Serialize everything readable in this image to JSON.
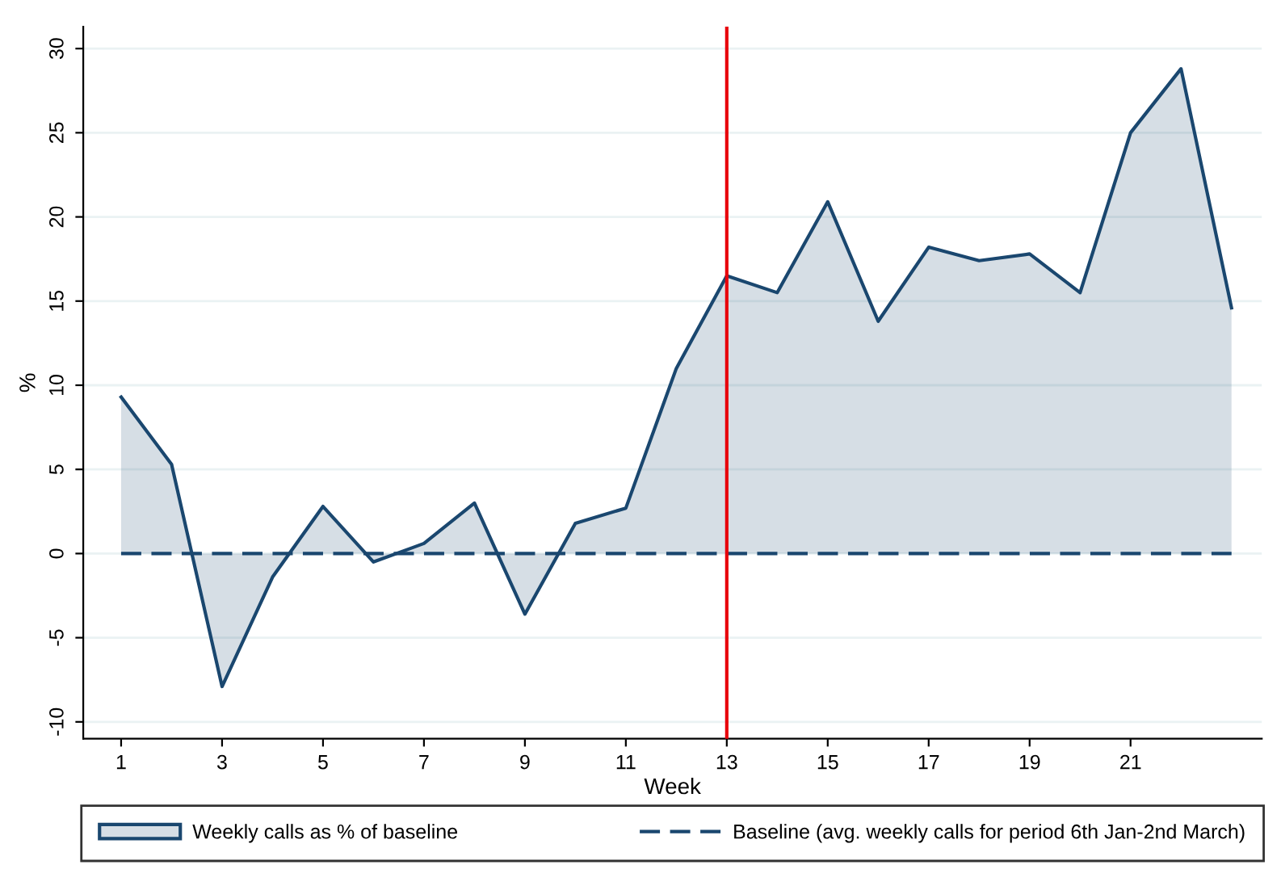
{
  "chart_data": {
    "type": "area",
    "xlabel": "Week",
    "ylabel": "%",
    "x": [
      1,
      2,
      3,
      4,
      5,
      6,
      7,
      8,
      9,
      10,
      11,
      12,
      13,
      14,
      15,
      16,
      17,
      18,
      19,
      20,
      21,
      22,
      23
    ],
    "series": [
      {
        "name": "Weekly calls as % of baseline",
        "color": "#1a476f",
        "values": [
          9.3,
          5.3,
          -7.9,
          -1.4,
          2.8,
          -0.5,
          0.6,
          3.0,
          -3.6,
          1.8,
          2.7,
          11.0,
          16.5,
          15.5,
          20.9,
          13.8,
          18.2,
          17.4,
          17.8,
          15.5,
          25.0,
          28.8,
          14.6
        ]
      },
      {
        "name": "Baseline (avg. weekly calls for period 6th Jan-2nd March)",
        "type": "line",
        "color": "#1a476f",
        "line_style": "dashed",
        "values": [
          0,
          0,
          0,
          0,
          0,
          0,
          0,
          0,
          0,
          0,
          0,
          0,
          0,
          0,
          0,
          0,
          0,
          0,
          0,
          0,
          0,
          0,
          0
        ]
      }
    ],
    "ref_lines": [
      {
        "axis": "x",
        "value": 13,
        "color": "#e8000b"
      }
    ],
    "xlim": [
      0.25,
      23.6
    ],
    "xticks": [
      1,
      3,
      5,
      7,
      9,
      11,
      13,
      15,
      17,
      19,
      21
    ],
    "ylim": [
      -11,
      31.3
    ],
    "yticks": [
      -10,
      -5,
      0,
      5,
      10,
      15,
      20,
      25,
      30
    ],
    "grid": "y",
    "legend": "bottom"
  }
}
